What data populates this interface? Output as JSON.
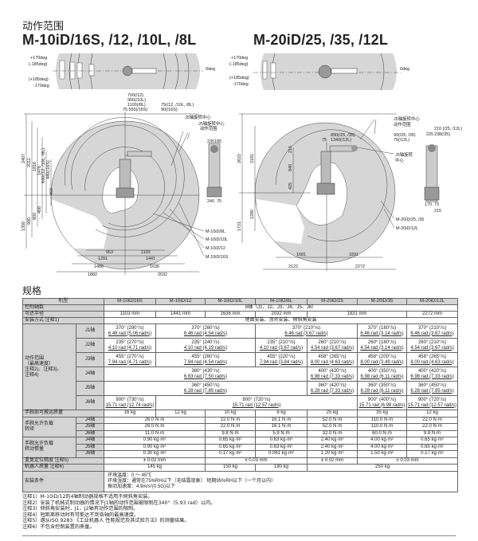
{
  "section_motion": "动作范围",
  "left_title": "M-10iD/16S, /12, /10L, /8L",
  "right_title": "M-20iD/25, /35, /12L",
  "left_top_view": {
    "labels": [
      "+170deg",
      "(-185deg)",
      "(+185deg)",
      "-170deg",
      "0deg"
    ]
  },
  "right_top_view": {
    "labels": [
      "+170deg",
      "(-185deg)",
      "(+185deg)",
      "-170deg",
      "0deg"
    ]
  },
  "left_side_view": {
    "top_dims": [
      "700(/12)",
      "900(/10L)",
      "1100(/8L)",
      "75 555(/16S)",
      "75(/12, /10L, /8L)",
      "90(/16S)"
    ],
    "callouts": [
      "J5轴旋转中心",
      "J5轴旋转中心",
      "动作范围"
    ],
    "vertical_dims": [
      "2407",
      "2011",
      "1816",
      "1476",
      "640(/12, /10L, /8L)",
      "440(/16S)",
      "450",
      "1350",
      "995",
      "800",
      "408"
    ],
    "bottom_dims": [
      "953",
      "1103",
      "1291",
      "1441",
      "1486",
      "1636",
      "1882",
      "2032"
    ],
    "models": [
      "M-10iD/8L",
      "M-10iD/10L",
      "M-10iD/12",
      "M-10iD/16S"
    ],
    "small_dims": [
      "235",
      "185",
      "240",
      "75"
    ]
  },
  "right_side_view": {
    "top_dims": [
      "890(/25, /35)",
      "75",
      "1340(/12L)",
      "90(/25, /35)",
      "75(/12L)"
    ],
    "callouts": [
      "J5轴旋转中心",
      "动作范围",
      "J5轴旋转",
      "中心"
    ],
    "vertical_dims": [
      "2622",
      "2181",
      "215",
      "840",
      "425",
      "1280",
      "1721"
    ],
    "bottom_dims": [
      "1681",
      "1831",
      "2122",
      "2272"
    ],
    "models": [
      "M-20iD/25, /35",
      "M-20iD/12L"
    ],
    "small_dims": [
      "210 (/25, /12L)",
      "225",
      "238(/35)",
      "170",
      "73",
      "215"
    ]
  },
  "section_spec": "规格",
  "spec_table": {
    "header": [
      "机型",
      "M-10iD/16S",
      "M-10iD/12",
      "M-10iD/10L",
      "M-10iD/8L",
      "M-20iD/25",
      "M-20iD/35",
      "M-20iD/12L"
    ],
    "rows": [
      {
        "label": "控制轴数",
        "cells": [
          {
            "t": [
              "6轴（J1、J2、J3、J4、J5、J6）"
            ],
            "span": 7
          }
        ]
      },
      {
        "label": "可达半径",
        "cells": [
          {
            "t": [
              "1103 mm"
            ]
          },
          {
            "t": [
              "1441 mm"
            ]
          },
          {
            "t": [
              "1636 mm"
            ]
          },
          {
            "t": [
              "2032 mm"
            ]
          },
          {
            "t": [
              "1831 mm"
            ],
            "span": 2
          },
          {
            "t": [
              "2272 mm"
            ]
          }
        ]
      },
      {
        "label": "安装方式 注释1)",
        "cells": [
          {
            "t": [
              "地面安装、顶吊安装、倾斜角安装"
            ],
            "span": 7
          }
        ]
      },
      {
        "group": "动作范围\n（最高速度）\n注释2)、注释3)、\n注释4)",
        "group_rows": 6,
        "axis": "J1轴",
        "cells": [
          {
            "t": [
              "370° (290°/s)",
              "6.46 rad (5.06 rad/s)"
            ]
          },
          {
            "t": [
              "370° (260°/s)",
              "6.46 rad (4.54 rad/s)"
            ],
            "span": 2
          },
          {
            "t": [
              "370° (210°/s)",
              "6.46 rad (3.67 rad/s)"
            ],
            "span": 2
          },
          {
            "t": [
              "370° (180°/s)",
              "6.46 rad (3.14 rad/s)"
            ]
          },
          {
            "t": [
              "370° (210°/s)",
              "6.46 rad (3.67 rad/s)"
            ]
          }
        ]
      },
      {
        "axis": "J2轴",
        "cells": [
          {
            "t": [
              "235° (270°/s)",
              "4.10 rad (4.71 rad/s)"
            ]
          },
          {
            "t": [
              "235° (240°/s)",
              "4.10 rad (4.19 rad/s)"
            ],
            "span": 2
          },
          {
            "t": [
              "235° (210°/s)",
              "4.10 rad (3.67 rad/s)"
            ]
          },
          {
            "t": [
              "260° (210°/s)",
              "4.54 rad (3.67 rad/s)"
            ]
          },
          {
            "t": [
              "260° (180°/s)",
              "4.54 rad (3.14 rad/s)"
            ]
          },
          {
            "t": [
              "260° (210°/s)",
              "4.54 rad (3.67 rad/s)"
            ]
          }
        ]
      },
      {
        "axis": "J3轴",
        "cells": [
          {
            "t": [
              "455° (270°/s)",
              "7.94 rad (4.71 rad/s)"
            ]
          },
          {
            "t": [
              "455° (260°/s)",
              "7.94 rad (4.54 rad/s)"
            ],
            "span": 2
          },
          {
            "t": [
              "455° (220°/s)",
              "7.94 rad (3.84 rad/s)"
            ]
          },
          {
            "t": [
              "458° (265°/s)",
              "8.00 rad (4.63 rad/s)"
            ]
          },
          {
            "t": [
              "458° (200°/s)",
              "8.00 rad (3.49 rad/s)"
            ]
          },
          {
            "t": [
              "458° (265°/s)",
              "8.00 rad (4.63 rad/s)"
            ]
          }
        ]
      },
      {
        "axis": "J4轴",
        "cells": [
          {
            "t": [
              "380° (430°/s)",
              "6.63 rad (7.50 rad/s)"
            ],
            "span": 4
          },
          {
            "t": [
              "400° (420°/s)",
              "6.98 rad (7.33 rad/s)"
            ]
          },
          {
            "t": [
              "400° (350°/s)",
              "6.98 rad (6.11 rad/s)"
            ]
          },
          {
            "t": [
              "400° (420°/s)",
              "6.98 rad (7.33 rad/s)"
            ]
          }
        ]
      },
      {
        "axis": "J5轴",
        "cells": [
          {
            "t": [
              "360° (450°/s)",
              "6.28 rad (7.85 rad/s)"
            ],
            "span": 4
          },
          {
            "t": [
              "360° (420°/s)",
              "6.28 rad (7.33 rad/s)"
            ]
          },
          {
            "t": [
              "360° (350°/s)",
              "6.28 rad (6.11 rad/s)"
            ]
          },
          {
            "t": [
              "360° (450°/s)",
              "6.28 rad (7.85 rad/s)"
            ]
          }
        ]
      },
      {
        "axis": "J6轴",
        "cells": [
          {
            "t": [
              "900° (730°/s)",
              "15.71 rad (12.74 rad/s)"
            ]
          },
          {
            "t": [
              "900° (720°/s)",
              "15.71 rad (12.57 rad/s)"
            ],
            "span": 4
          },
          {
            "t": [
              "900° (400°/s)",
              "15.71 rad (6.98 rad/s)"
            ]
          },
          {
            "t": [
              "900° (720°/s)",
              "15.71 rad (12.57 rad/s)"
            ]
          }
        ]
      },
      {
        "label": "手腕部可搬运质量",
        "cells": [
          {
            "t": [
              "16 kg"
            ]
          },
          {
            "t": [
              "12 kg"
            ]
          },
          {
            "t": [
              "10 kg"
            ]
          },
          {
            "t": [
              "8 kg"
            ]
          },
          {
            "t": [
              "25 kg"
            ]
          },
          {
            "t": [
              "35 kg"
            ]
          },
          {
            "t": [
              "12 kg"
            ]
          }
        ]
      },
      {
        "group": "手腕允许负载\n转矩",
        "group_rows": 3,
        "axis": "J4轴",
        "cells": [
          {
            "t": [
              "26.0 N·m"
            ],
            "span": 2
          },
          {
            "t": [
              "22.0 N·m"
            ]
          },
          {
            "t": [
              "16.1 N·m"
            ]
          },
          {
            "t": [
              "52.0 N·m"
            ]
          },
          {
            "t": [
              "110.0 N·m"
            ]
          },
          {
            "t": [
              "22.0 N·m"
            ]
          }
        ]
      },
      {
        "axis": "J5轴",
        "cells": [
          {
            "t": [
              "26.0 N·m"
            ],
            "span": 2
          },
          {
            "t": [
              "22.0 N·m"
            ]
          },
          {
            "t": [
              "16.1 N·m"
            ]
          },
          {
            "t": [
              "52.0 N·m"
            ]
          },
          {
            "t": [
              "110.0 N·m"
            ]
          },
          {
            "t": [
              "22.0 N·m"
            ]
          }
        ]
      },
      {
        "axis": "J6轴",
        "cells": [
          {
            "t": [
              "11.0 N·m"
            ],
            "span": 2
          },
          {
            "t": [
              "9.8 N·m"
            ]
          },
          {
            "t": [
              "5.9 N·m"
            ]
          },
          {
            "t": [
              "32.0 N·m"
            ]
          },
          {
            "t": [
              "60.0 N·m"
            ]
          },
          {
            "t": [
              "9.8 N·m"
            ]
          }
        ]
      },
      {
        "group": "手腕允许负载\n转动惯量",
        "group_rows": 3,
        "axis": "J4轴",
        "cells": [
          {
            "t": [
              "0.90 kg·m²"
            ],
            "span": 2
          },
          {
            "t": [
              "0.65 kg·m²"
            ]
          },
          {
            "t": [
              "0.63 kg·m²"
            ]
          },
          {
            "t": [
              "2.40 kg·m²"
            ]
          },
          {
            "t": [
              "4.00 kg·m²"
            ]
          },
          {
            "t": [
              "0.65 kg·m²"
            ]
          }
        ]
      },
      {
        "axis": "J5轴",
        "cells": [
          {
            "t": [
              "0.90 kg·m²"
            ],
            "span": 2
          },
          {
            "t": [
              "0.65 kg·m²"
            ]
          },
          {
            "t": [
              "0.63 kg·m²"
            ]
          },
          {
            "t": [
              "2.40 kg·m²"
            ]
          },
          {
            "t": [
              "4.00 kg·m²"
            ]
          },
          {
            "t": [
              "0.65 kg·m²"
            ]
          }
        ]
      },
      {
        "axis": "J6轴",
        "cells": [
          {
            "t": [
              "0.30 kg·m²"
            ],
            "span": 2
          },
          {
            "t": [
              "0.17 kg·m²"
            ]
          },
          {
            "t": [
              "0.061 kg·m²"
            ]
          },
          {
            "t": [
              "1.20 kg·m²"
            ]
          },
          {
            "t": [
              "1.50 kg·m²"
            ]
          },
          {
            "t": [
              "0.17 kg·m²"
            ]
          }
        ]
      },
      {
        "label": "重复定位精度 注释5)",
        "cells": [
          {
            "t": [
              "± 0.02 mm"
            ],
            "span": 2
          },
          {
            "t": [
              "± 0.03 mm"
            ],
            "span": 2
          },
          {
            "t": [
              "± 0.02 mm"
            ]
          },
          {
            "t": [
              "± 0.03 mm"
            ],
            "span": 2
          }
        ]
      },
      {
        "label": "机器人质量 注释6)",
        "cells": [
          {
            "t": [
              "145 kg"
            ],
            "span": 2
          },
          {
            "t": [
              "150 kg"
            ]
          },
          {
            "t": [
              "180 kg"
            ]
          },
          {
            "t": [
              "250 kg"
            ],
            "span": 3
          }
        ]
      },
      {
        "label": "安装条件",
        "cells": [
          {
            "t": [
              "环境温度：0 ～ 45℃",
              "环境湿度：通常在75%RH以下（无结露现象） 短期95%RH以下（一个月以内）",
              "振动加速度：4.9m/s²(0.5G)以下"
            ],
            "span": 7,
            "align": "left"
          }
        ]
      }
    ]
  },
  "notes": [
    "注释1）M-10iD/12的4轴制动器规格不适用于倾斜角安装。",
    "注释2）安装了机械式制动器的情况下J1轴的动作范围被限制在340°（5.93 rad）以内。",
    "注释3）倾斜角安装时，J1、J2轴有动作范围的限制。",
    "注释4）短距离移动时有可能达不到各轴的最高速度。",
    "注释5）遵从ISO 9283 《工业机器人 性能规范及其试验方法》的测量结果。",
    "注释6）不包含控制装置的质量。"
  ],
  "colors": {
    "range_fill": "#d6d6d6",
    "header_fill": "#d4d4d4",
    "line": "#222222"
  }
}
